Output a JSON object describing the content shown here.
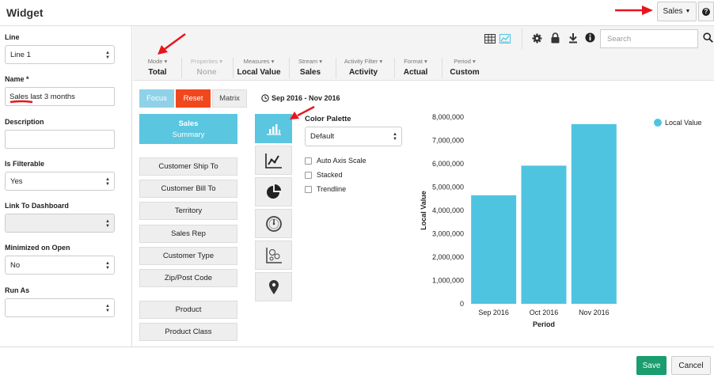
{
  "window": {
    "title": "Widget"
  },
  "top_actions": {
    "sales_label": "Sales",
    "help_icon": "question-circle-icon"
  },
  "sidebar": {
    "line_label": "Line",
    "line_value": "Line 1",
    "name_label": "Name *",
    "name_value": "Sales last 3 months",
    "description_label": "Description",
    "description_value": "",
    "filterable_label": "Is Filterable",
    "filterable_value": "Yes",
    "link_label": "Link To Dashboard",
    "link_value": "",
    "minimized_label": "Minimized on Open",
    "minimized_value": "No",
    "runas_label": "Run As",
    "runas_value": ""
  },
  "toolbar": {
    "icons": [
      "table-view-icon",
      "chart-view-icon",
      "gear-icon",
      "lock-icon",
      "download-icon",
      "info-icon"
    ],
    "search_placeholder": "Search",
    "groups": [
      {
        "caption": "Mode",
        "value": "Total",
        "disabled": false
      },
      {
        "caption": "Properties",
        "value": "None",
        "disabled": true
      },
      {
        "caption": "Measures",
        "value": "Local Value",
        "disabled": false
      },
      {
        "caption": "Stream",
        "value": "Sales",
        "disabled": false
      },
      {
        "caption": "Activity Filter",
        "value": "Activity",
        "disabled": false
      },
      {
        "caption": "Format",
        "value": "Actual",
        "disabled": false
      },
      {
        "caption": "Period",
        "value": "Custom",
        "disabled": false
      }
    ]
  },
  "view_tabs": {
    "focus": "Focus",
    "reset": "Reset",
    "matrix": "Matrix"
  },
  "date_range": "Sep 2016 - Nov 2016",
  "summary_button": {
    "line1": "Sales",
    "line2": "Summary"
  },
  "dimension_buttons": [
    "Customer Ship To",
    "Customer Bill To",
    "Territory",
    "Sales Rep",
    "Customer Type",
    "Zip/Post Code",
    "Product",
    "Product Class"
  ],
  "chart_types": [
    "bar-chart-icon",
    "line-chart-icon",
    "pie-chart-icon",
    "gauge-icon",
    "scatter-chart-icon",
    "map-pin-icon"
  ],
  "options": {
    "palette_label": "Color Palette",
    "palette_value": "Default",
    "checkboxes": [
      "Auto Axis Scale",
      "Stacked",
      "Trendline"
    ]
  },
  "chart_data": {
    "type": "bar",
    "categories": [
      "Sep 2016",
      "Oct 2016",
      "Nov 2016"
    ],
    "series": [
      {
        "name": "Local Value",
        "values": [
          4650000,
          5920000,
          7700000
        ],
        "color": "#4fc4e0"
      }
    ],
    "xlabel": "Period",
    "ylabel": "Local Value",
    "ylim": [
      0,
      8000000
    ],
    "yticks": [
      "0",
      "1,000,000",
      "2,000,000",
      "3,000,000",
      "4,000,000",
      "5,000,000",
      "6,000,000",
      "7,000,000",
      "8,000,000"
    ],
    "legend_position": "top-right",
    "grid": false
  },
  "footer": {
    "save": "Save",
    "cancel": "Cancel"
  },
  "colors": {
    "accent": "#5ac6e0",
    "reset": "#f1471d",
    "save": "#1a9d6f",
    "annotation_arrow": "#e8141c"
  }
}
